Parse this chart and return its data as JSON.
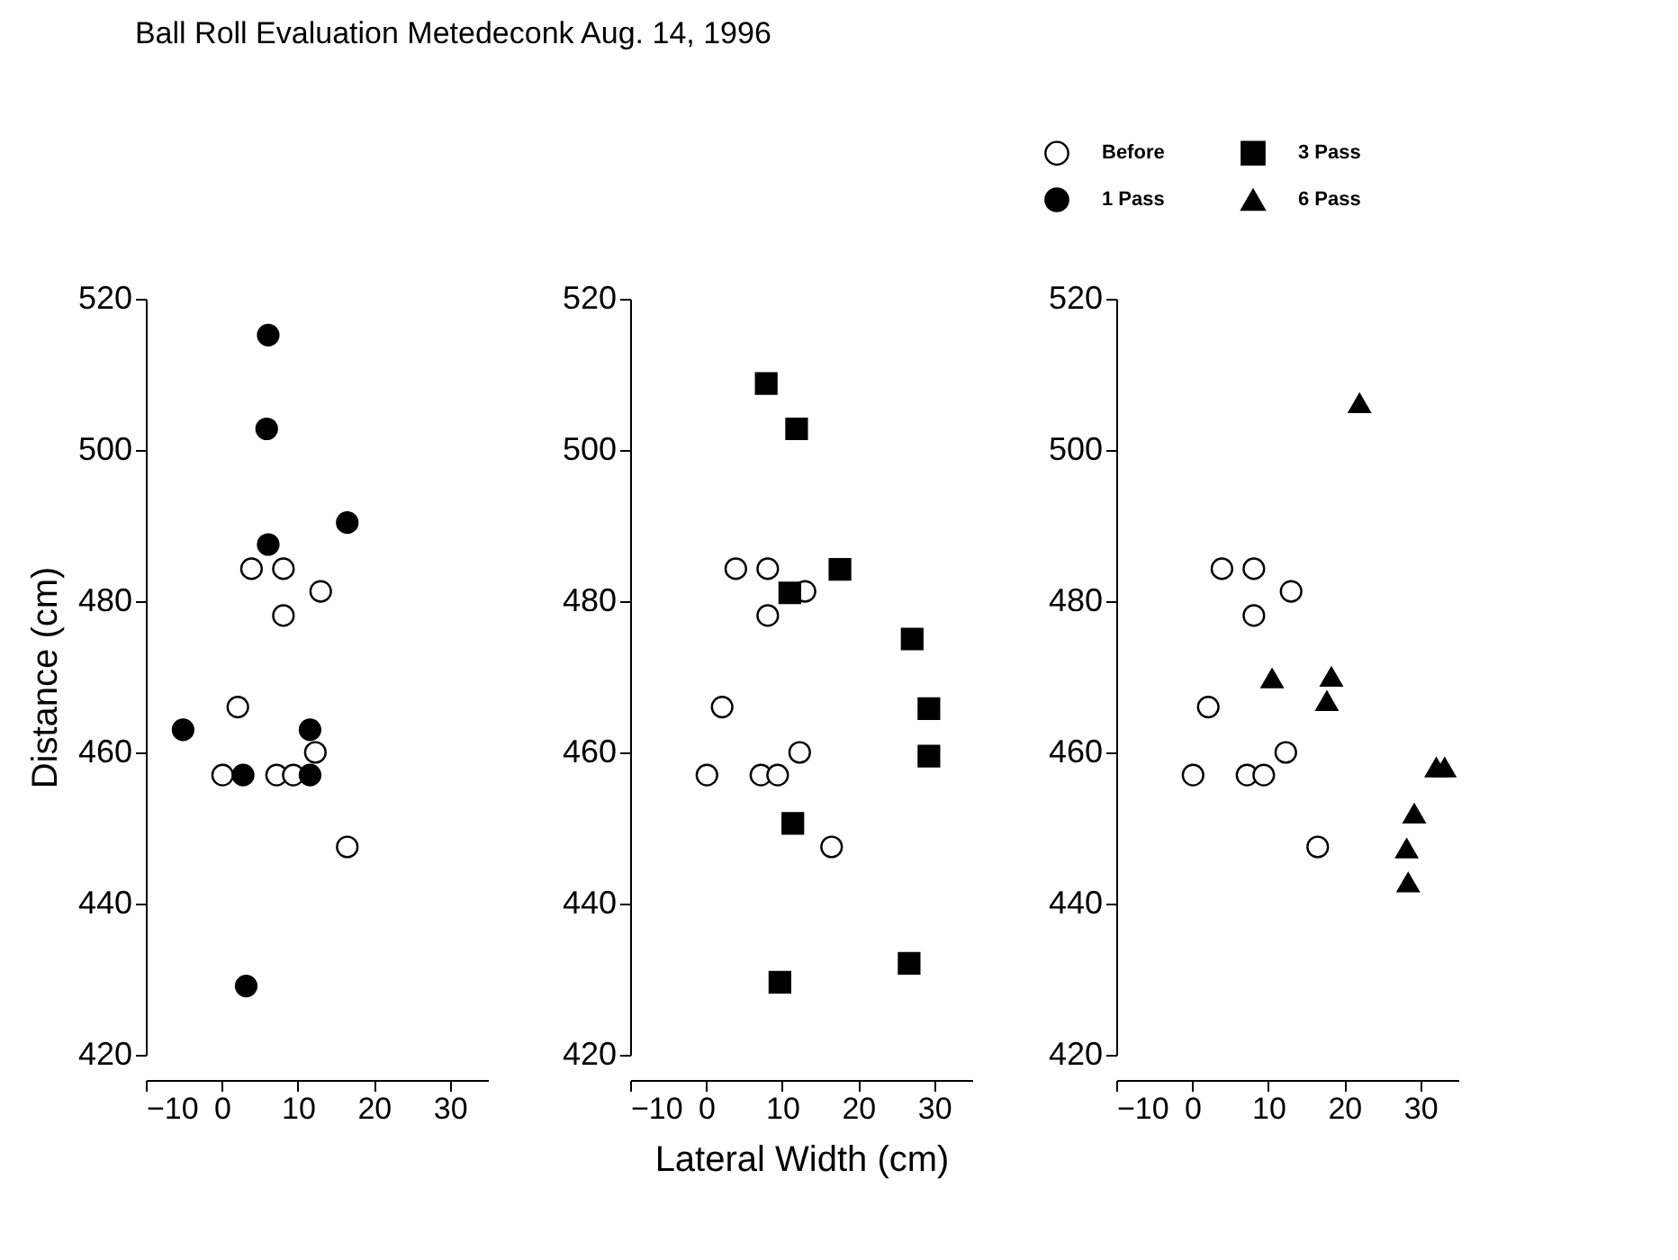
{
  "chart_data": [
    {
      "type": "scatter",
      "title": "Ball Roll Evaluation Metedeconk Aug. 14, 1996",
      "ylabel": "Distance (cm)",
      "legend": "top right",
      "xlim": [
        -10,
        35
      ],
      "xticks": [
        -10,
        0,
        10,
        20,
        30
      ],
      "ylim": [
        420,
        520
      ],
      "yticks": [
        420,
        440,
        460,
        480,
        500,
        520
      ],
      "grid": false,
      "series": [
        {
          "name": "Before",
          "color": "#ffffff",
          "marker": "circle",
          "x": [
            0.1,
            2.1,
            3.9,
            8.1,
            8.1,
            7.2,
            9.4,
            12.3,
            13,
            16.5
          ],
          "values": [
            457,
            466,
            484.3,
            484.3,
            478.1,
            457,
            457,
            460,
            481.3,
            447.5
          ]
        },
        {
          "name": "1 Pass",
          "color": "#000000",
          "marker": "circle",
          "x": [
            6.1,
            5.9,
            6.1,
            16.5,
            -5.1,
            2.8,
            11.6,
            11.6,
            3.2
          ],
          "values": [
            515.2,
            502.8,
            487.5,
            490.4,
            463,
            457,
            463,
            457,
            429.1
          ]
        }
      ]
    },
    {
      "type": "scatter",
      "xlabel": "Lateral Width (cm)",
      "legend": "top right",
      "xlim": [
        -10,
        35
      ],
      "xticks": [
        -10,
        0,
        10,
        20,
        30
      ],
      "ylim": [
        420,
        520
      ],
      "yticks": [
        420,
        440,
        460,
        480,
        500,
        520
      ],
      "grid": false,
      "series": [
        {
          "color": "#ffffff",
          "marker": "circle",
          "x": [
            0.1,
            2.1,
            3.9,
            8.1,
            8.1,
            7.2,
            9.4,
            12.3,
            13,
            16.5
          ],
          "values": [
            457,
            466,
            484.3,
            484.3,
            478.1,
            457,
            457,
            460,
            481.3,
            447.5
          ]
        },
        {
          "name": "3 Pass",
          "color": "#000000",
          "marker": "square",
          "x": [
            7.9,
            11.9,
            17.6,
            11,
            27.1,
            29.3,
            29.3,
            11.4,
            9.7,
            26.7
          ],
          "values": [
            508.8,
            502.8,
            484.2,
            481.1,
            475,
            465.8,
            459.5,
            450.6,
            429.6,
            432.1
          ]
        }
      ]
    },
    {
      "type": "scatter",
      "legend": "top right",
      "xlim": [
        -10,
        35
      ],
      "xticks": [
        -10,
        0,
        10,
        20,
        30
      ],
      "ylim": [
        420,
        520
      ],
      "yticks": [
        420,
        440,
        460,
        480,
        500,
        520
      ],
      "grid": false,
      "series": [
        {
          "color": "#ffffff",
          "marker": "circle",
          "x": [
            0.1,
            2.1,
            3.9,
            8.1,
            8.1,
            7.2,
            9.4,
            12.3,
            13,
            16.5
          ],
          "values": [
            457,
            466,
            484.3,
            484.3,
            478.1,
            457,
            457,
            460,
            481.3,
            447.5
          ]
        },
        {
          "name": "6 Pass",
          "color": "#000000",
          "marker": "triangle",
          "x": [
            22,
            10.5,
            18.3,
            17.7,
            32.1,
            33.2,
            29.2,
            28.2,
            28.4
          ],
          "values": [
            506.2,
            469.8,
            470,
            466.8,
            458,
            458,
            451.9,
            447.3,
            442.8
          ]
        }
      ]
    }
  ]
}
